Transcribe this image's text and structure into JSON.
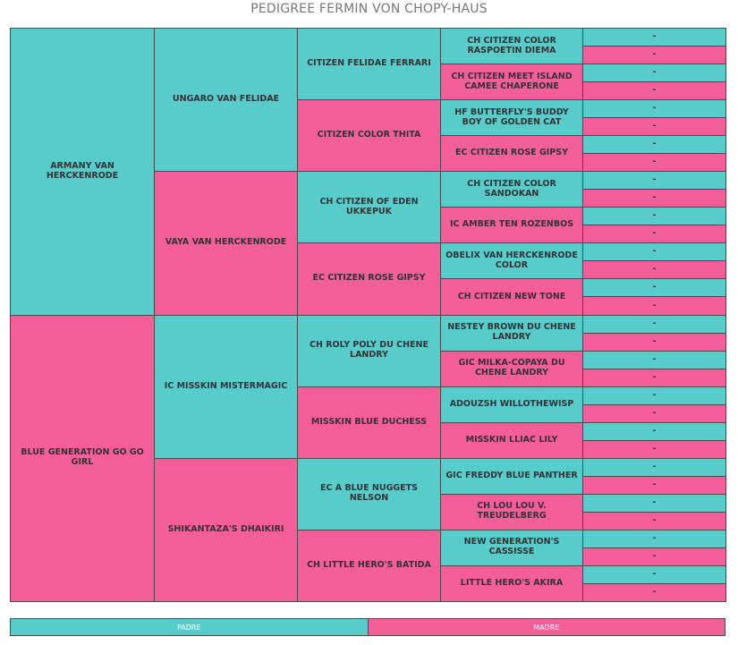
{
  "title": "PEDIGREE FERMIN VON CHOPY-HAUS",
  "gen1": [
    "ARMANY VAN HERCKENRODE",
    "BLUE GENERATION GO GO GIRL"
  ],
  "gen2": [
    "UNGARO VAN FELIDAE",
    "VAYA VAN HERCKENRODE",
    "IC MISSKIN MISTERMAGIC",
    "SHIKANTAZA'S DHAIKIRI"
  ],
  "gen3": [
    "CITIZEN FELIDAE FERRARI",
    "CITIZEN COLOR THITA",
    "CH CITIZEN OF EDEN UKKEPUK",
    "EC CITIZEN ROSE GIPSY",
    "CH ROLY POLY DU CHENE LANDRY",
    "MISSKIN BLUE DUCHESS",
    "EC A BLUE NUGGETS NELSON",
    "CH LITTLE HERO'S BATIDA"
  ],
  "gen4": [
    "CH CITIZEN COLOR RASPOETIN DIEMA",
    "CH CITIZEN MEET ISLAND CAMEE CHAPERONE",
    "HF BUTTERFLY'S BUDDY BOY OF GOLDEN CAT",
    "EC CITIZEN ROSE GIPSY",
    "CH CITIZEN COLOR SANDOKAN",
    "IC AMBER TEN ROZENBOS",
    "OBELIX VAN HERCKENRODE COLOR",
    "CH CITIZEN NEW TONE",
    "NESTEY BROWN DU CHENE LANDRY",
    "GIC MILKA-COPAYA DU CHENE LANDRY",
    "ADOUZSH WILLOTHEWISP",
    "MISSKIN LLIAC LILY",
    "GIC FREDDY BLUE PANTHER",
    "CH LOU LOU V. TREUDELBERG",
    "NEW GENERATION'S CASSISSE",
    "LITTLE HERO'S AKIRA"
  ],
  "gen5": [
    "-",
    "-",
    "-",
    "-",
    "-",
    "-",
    "-",
    "-",
    "-",
    "-",
    "-",
    "-",
    "-",
    "-",
    "-",
    "-",
    "-",
    "-",
    "-",
    "-",
    "-",
    "-",
    "-",
    "-",
    "-",
    "-",
    "-",
    "-",
    "-",
    "-",
    "-",
    "-"
  ],
  "legend": {
    "padre": "PADRE",
    "madre": "MADRE"
  },
  "colors": {
    "padre": "#58cbcb",
    "madre": "#f45f99"
  }
}
